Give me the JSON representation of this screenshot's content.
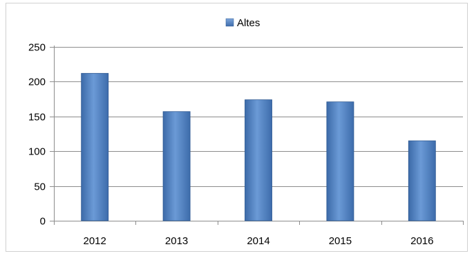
{
  "chart_data": {
    "type": "bar",
    "title": "",
    "xlabel": "",
    "ylabel": "",
    "categories": [
      "2012",
      "2013",
      "2014",
      "2015",
      "2016"
    ],
    "series": [
      {
        "name": "Altes",
        "values": [
          212,
          157,
          174,
          171,
          115
        ],
        "color": "#4f81bd"
      }
    ],
    "ylim": [
      0,
      250
    ],
    "yticks": [
      "0",
      "50",
      "100",
      "150",
      "200",
      "250"
    ],
    "grid": true,
    "legend_position": "top-center"
  }
}
